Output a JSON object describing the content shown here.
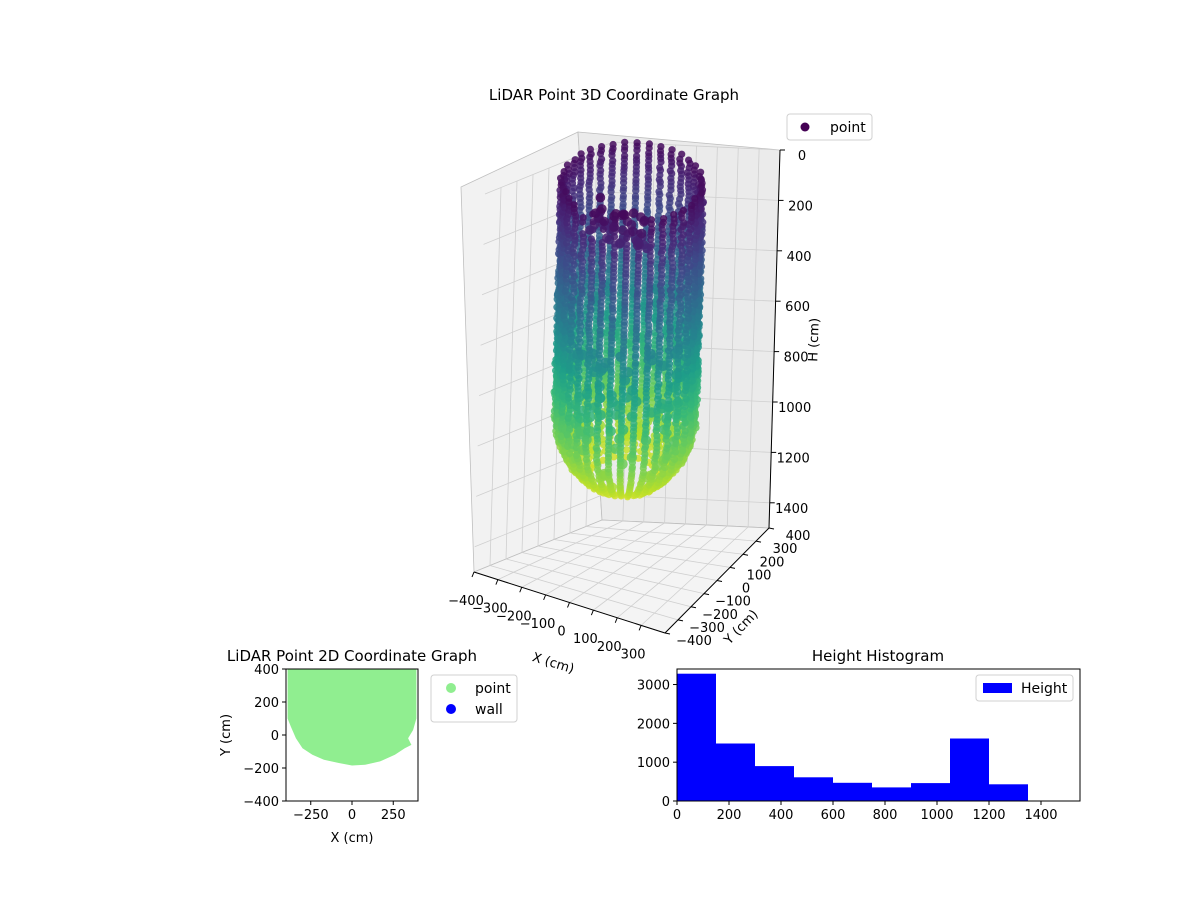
{
  "chart_data": [
    {
      "type": "scatter3d",
      "title": "LiDAR Point 3D Coordinate Graph",
      "xlabel": "X (cm)",
      "ylabel": "Y (cm)",
      "zlabel": "H (cm)",
      "xlim": [
        -400,
        400
      ],
      "ylim": [
        -400,
        400
      ],
      "zlim": [
        0,
        1500
      ],
      "z_inverted": true,
      "xticks": [
        "−400",
        "−300",
        "−200",
        "−100",
        "0",
        "100",
        "200",
        "300"
      ],
      "yticks": [
        "−400",
        "−300",
        "−200",
        "−100",
        "0",
        "100",
        "200",
        "300",
        "400"
      ],
      "zticks": [
        "0",
        "200",
        "400",
        "600",
        "800",
        "1000",
        "1200",
        "1400"
      ],
      "legend": {
        "placement": "top-right",
        "entries": [
          {
            "name": "point",
            "color": "#440154"
          }
        ]
      },
      "colormap": "viridis",
      "cylinder_radius": 260,
      "grid": true
    },
    {
      "type": "scatter",
      "title": "LiDAR Point 2D Coordinate Graph",
      "xlabel": "X (cm)",
      "ylabel": "Y (cm)",
      "xlim": [
        -400,
        400
      ],
      "ylim": [
        -400,
        400
      ],
      "xticks": [
        "−250",
        "0",
        "250"
      ],
      "yticks": [
        "−400",
        "−200",
        "0",
        "200",
        "400"
      ],
      "legend": {
        "placement": "outside-right",
        "entries": [
          {
            "name": "point",
            "color": "#90ee90"
          },
          {
            "name": "wall",
            "color": "#0000ff"
          }
        ]
      },
      "series": [
        {
          "name": "point",
          "color": "#90ee90",
          "boundary": [
            [
              -390,
              400
            ],
            [
              -390,
              100
            ],
            [
              -370,
              50
            ],
            [
              -340,
              -20
            ],
            [
              -300,
              -80
            ],
            [
              -240,
              -120
            ],
            [
              -170,
              -150
            ],
            [
              -80,
              -170
            ],
            [
              0,
              -185
            ],
            [
              80,
              -180
            ],
            [
              170,
              -160
            ],
            [
              260,
              -120
            ],
            [
              320,
              -80
            ],
            [
              360,
              -60
            ],
            [
              340,
              -20
            ],
            [
              370,
              30
            ],
            [
              390,
              100
            ],
            [
              390,
              400
            ]
          ]
        }
      ]
    },
    {
      "type": "bar",
      "title": "Height Histogram",
      "legend": {
        "placement": "top-right",
        "entries": [
          {
            "name": "Height",
            "color": "#0000ff"
          }
        ]
      },
      "xlim": [
        0,
        1550
      ],
      "ylim": [
        0,
        3400
      ],
      "xticks": [
        "0",
        "200",
        "400",
        "600",
        "800",
        "1000",
        "1200",
        "1400"
      ],
      "yticks": [
        "0",
        "1000",
        "2000",
        "3000"
      ],
      "bin_edges": [
        0,
        150,
        300,
        450,
        600,
        750,
        900,
        1050,
        1200,
        1350
      ],
      "values": [
        3280,
        1480,
        900,
        610,
        470,
        350,
        460,
        1610,
        430
      ],
      "color": "#0000ff"
    }
  ]
}
